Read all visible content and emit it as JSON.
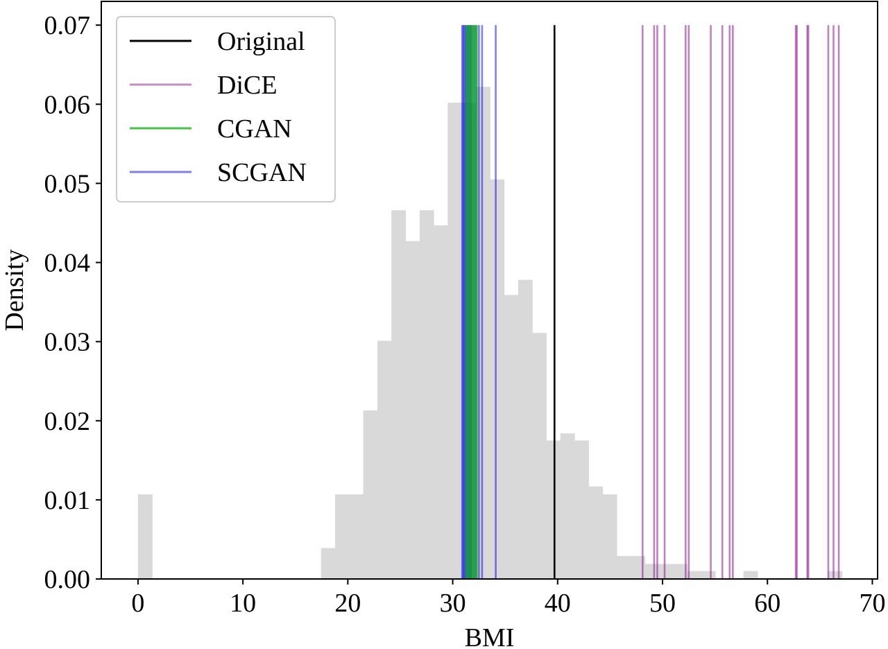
{
  "chart_data": {
    "type": "histogram",
    "xlabel": "BMI",
    "ylabel": "Density",
    "xlim": [
      -3.5,
      70.5
    ],
    "ylim": [
      0,
      0.073
    ],
    "x_ticks": [
      0,
      10,
      20,
      30,
      40,
      50,
      60,
      70
    ],
    "y_ticks": [
      0.0,
      0.01,
      0.02,
      0.03,
      0.04,
      0.05,
      0.06,
      0.07
    ],
    "y_tick_labels": [
      "0.00",
      "0.01",
      "0.02",
      "0.03",
      "0.04",
      "0.05",
      "0.06",
      "0.07"
    ],
    "grid": false,
    "histogram": {
      "color": "#d9d9d9",
      "bin_width": 1.342,
      "bin_start": 0,
      "densities": [
        0.0107,
        0,
        0,
        0,
        0,
        0,
        0,
        0,
        0,
        0,
        0,
        0,
        0,
        0.0039,
        0.0107,
        0.0107,
        0.0213,
        0.0301,
        0.0466,
        0.0427,
        0.0466,
        0.0447,
        0.0602,
        0.0602,
        0.0622,
        0.0505,
        0.0359,
        0.0378,
        0.0311,
        0.0175,
        0.0184,
        0.0175,
        0.0117,
        0.0107,
        0.0029,
        0.0029,
        0.0019,
        0.0019,
        0.0019,
        0.001,
        0.001,
        0,
        0,
        0.001,
        0,
        0,
        0,
        0,
        0,
        0.001
      ]
    },
    "legend": {
      "placement": "upper-left",
      "entries": [
        {
          "label": "Original",
          "color": "#000000",
          "opacity": 1.0
        },
        {
          "label": "DiCE",
          "color": "#8b1a8b",
          "opacity": 0.5
        },
        {
          "label": "CGAN",
          "color": "#00b300",
          "opacity": 0.75
        },
        {
          "label": "SCGAN",
          "color": "#0000e6",
          "opacity": 0.5
        }
      ]
    },
    "vlines": {
      "y_top": 0.07,
      "series": [
        {
          "name": "Original",
          "color": "#000000",
          "opacity": 1.0,
          "width": 2.6,
          "x": [
            39.7
          ]
        },
        {
          "name": "DiCE",
          "color": "#8b1a8b",
          "opacity": 0.55,
          "width": 2.6,
          "x": [
            48.1,
            49.2,
            49.5,
            50.2,
            52.2,
            52.5,
            54.6,
            55.7,
            56.4,
            56.7,
            62.7,
            62.8,
            63.8,
            63.9,
            65.8,
            66.3,
            66.8
          ]
        },
        {
          "name": "CGAN",
          "color": "#00b300",
          "opacity": 0.75,
          "width": 2.6,
          "x": [
            31.3,
            31.5,
            31.7,
            31.9,
            32.1,
            32.3
          ]
        },
        {
          "name": "SCGAN",
          "color": "#0000e6",
          "opacity": 0.5,
          "width": 2.6,
          "x": [
            30.9,
            31.0,
            31.1,
            31.2,
            31.3,
            31.4,
            31.5,
            31.6,
            31.7,
            31.8,
            32.0,
            32.2,
            32.5,
            32.8,
            34.1
          ]
        }
      ]
    }
  }
}
